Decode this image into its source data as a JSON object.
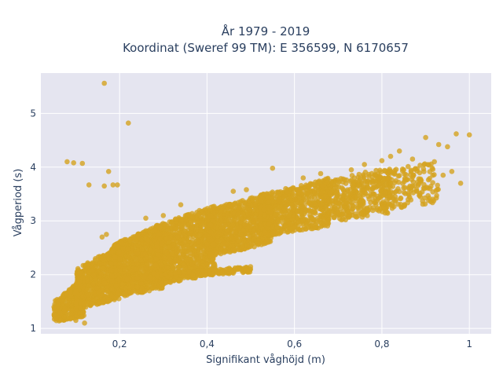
{
  "chart_data": {
    "type": "scatter",
    "title_line1": "År 1979 - 2019",
    "title_line2": "Koordinat (Sweref 99 TM): E 356599, N 6170657",
    "xlabel": "Signifikant våghöjd (m)",
    "ylabel": "Vågperiod (s)",
    "xlim": [
      0.02,
      1.05
    ],
    "ylim": [
      0.9,
      5.75
    ],
    "xticks": [
      0.2,
      0.4,
      0.6,
      0.8,
      1.0
    ],
    "xtick_labels": [
      "0,2",
      "0,4",
      "0,6",
      "0,8",
      "1"
    ],
    "yticks": [
      1,
      2,
      3,
      4,
      5
    ],
    "ytick_labels": [
      "1",
      "2",
      "3",
      "4",
      "5"
    ],
    "grid": true,
    "plot_background": "#e5e5f0",
    "marker_color": "#d4a21f",
    "series": [
      {
        "point_bands": [
          {
            "x0": 0.05,
            "x1": 0.12,
            "ylo0": 1.12,
            "ylo1": 1.22,
            "yhi0": 1.5,
            "yhi1": 1.95,
            "n": 350
          },
          {
            "x0": 0.1,
            "x1": 0.2,
            "ylo0": 1.35,
            "ylo1": 1.55,
            "yhi0": 2.1,
            "yhi1": 2.55,
            "n": 700
          },
          {
            "x0": 0.18,
            "x1": 0.3,
            "ylo0": 1.55,
            "ylo1": 1.75,
            "yhi0": 2.55,
            "yhi1": 2.95,
            "n": 1000
          },
          {
            "x0": 0.28,
            "x1": 0.42,
            "ylo0": 1.8,
            "ylo1": 2.0,
            "yhi0": 2.9,
            "yhi1": 3.3,
            "n": 1000
          },
          {
            "x0": 0.4,
            "x1": 0.55,
            "ylo0": 2.3,
            "ylo1": 2.6,
            "yhi0": 3.2,
            "yhi1": 3.55,
            "n": 850
          },
          {
            "x0": 0.52,
            "x1": 0.68,
            "ylo0": 2.7,
            "ylo1": 2.9,
            "yhi0": 3.45,
            "yhi1": 3.8,
            "n": 650
          },
          {
            "x0": 0.66,
            "x1": 0.82,
            "ylo0": 2.95,
            "ylo1": 3.15,
            "yhi0": 3.7,
            "yhi1": 4.05,
            "n": 420
          },
          {
            "x0": 0.8,
            "x1": 0.93,
            "ylo0": 3.2,
            "ylo1": 3.35,
            "yhi0": 3.9,
            "yhi1": 4.15,
            "n": 160
          },
          {
            "x0": 0.21,
            "x1": 0.5,
            "ylo0": 1.88,
            "ylo1": 2.05,
            "yhi0": 1.98,
            "yhi1": 2.15,
            "n": 260
          }
        ],
        "outliers": [
          [
            0.165,
            5.56
          ],
          [
            0.22,
            4.82
          ],
          [
            0.08,
            4.1
          ],
          [
            0.095,
            4.08
          ],
          [
            0.115,
            4.07
          ],
          [
            0.175,
            3.92
          ],
          [
            0.13,
            3.67
          ],
          [
            0.165,
            3.65
          ],
          [
            0.185,
            3.67
          ],
          [
            0.195,
            3.67
          ],
          [
            1.0,
            4.6
          ],
          [
            0.97,
            4.62
          ],
          [
            0.95,
            4.38
          ],
          [
            0.93,
            4.42
          ],
          [
            0.9,
            4.55
          ],
          [
            0.92,
            4.1
          ],
          [
            0.96,
            3.92
          ],
          [
            0.98,
            3.7
          ],
          [
            0.94,
            3.85
          ],
          [
            0.91,
            3.6
          ],
          [
            0.87,
            4.15
          ],
          [
            0.85,
            3.95
          ],
          [
            0.89,
            3.75
          ],
          [
            0.88,
            3.55
          ],
          [
            0.86,
            3.4
          ],
          [
            0.84,
            4.3
          ],
          [
            0.82,
            4.2
          ],
          [
            0.8,
            4.12
          ],
          [
            0.78,
            3.5
          ],
          [
            0.75,
            3.3
          ],
          [
            0.7,
            3.15
          ],
          [
            0.73,
            3.95
          ],
          [
            0.76,
            4.05
          ],
          [
            0.66,
            3.88
          ],
          [
            0.62,
            3.8
          ],
          [
            0.54,
            3.45
          ],
          [
            0.58,
            3.6
          ],
          [
            0.46,
            3.55
          ],
          [
            0.49,
            3.58
          ],
          [
            0.55,
            3.98
          ],
          [
            0.17,
            2.75
          ],
          [
            0.16,
            2.7
          ],
          [
            0.12,
            1.1
          ],
          [
            0.1,
            1.15
          ],
          [
            0.06,
            1.45
          ],
          [
            0.05,
            1.4
          ],
          [
            0.34,
            3.3
          ],
          [
            0.3,
            3.1
          ],
          [
            0.26,
            3.05
          ]
        ]
      }
    ]
  }
}
